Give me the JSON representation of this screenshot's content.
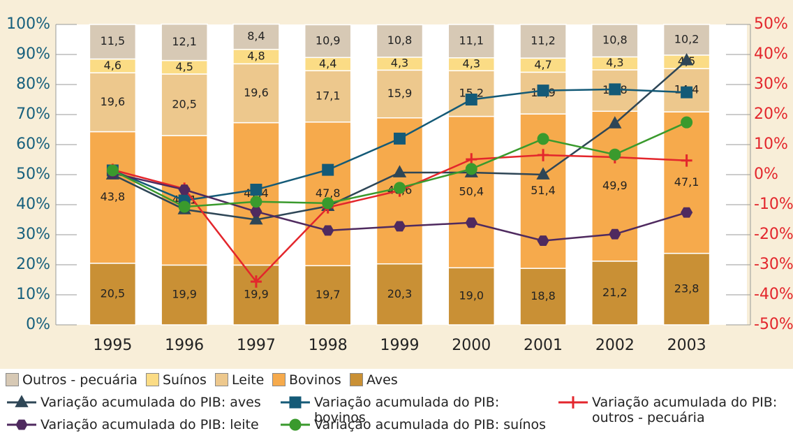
{
  "chart_data": {
    "type": "bar",
    "stacked": true,
    "categories": [
      "1995",
      "1996",
      "1997",
      "1998",
      "1999",
      "2000",
      "2001",
      "2002",
      "2003"
    ],
    "ylim": [
      0,
      100
    ],
    "yticks": [
      {
        "value": 0,
        "label": "0%"
      },
      {
        "value": 10,
        "label": "10%"
      },
      {
        "value": 20,
        "label": "20%"
      },
      {
        "value": 30,
        "label": "30%"
      },
      {
        "value": 40,
        "label": "40%"
      },
      {
        "value": 50,
        "label": "50%"
      },
      {
        "value": 60,
        "label": "60%"
      },
      {
        "value": 70,
        "label": "70%"
      },
      {
        "value": 80,
        "label": "80%"
      },
      {
        "value": 90,
        "label": "90%"
      },
      {
        "value": 100,
        "label": "100%"
      }
    ],
    "y2lim": [
      -50,
      50
    ],
    "y2ticks": [
      {
        "value": -50,
        "label": "-50%"
      },
      {
        "value": -40,
        "label": "-40%"
      },
      {
        "value": -30,
        "label": "-30%"
      },
      {
        "value": -20,
        "label": "-20%"
      },
      {
        "value": -10,
        "label": "-10%"
      },
      {
        "value": 0,
        "label": "0%"
      },
      {
        "value": 10,
        "label": "10%"
      },
      {
        "value": 20,
        "label": "20%"
      },
      {
        "value": 30,
        "label": "30%"
      },
      {
        "value": 40,
        "label": "40%"
      },
      {
        "value": 50,
        "label": "50%"
      }
    ],
    "series": [
      {
        "name": "Outros - pecuária",
        "type": "bar",
        "color": "#d7c9b5",
        "values": [
          11.5,
          12.1,
          8.4,
          10.9,
          10.8,
          11.1,
          11.2,
          10.8,
          10.2
        ],
        "value_labels": [
          "11,5",
          "12,1",
          "8,4",
          "10,9",
          "10,8",
          "11,1",
          "11,2",
          "10,8",
          "10,2"
        ]
      },
      {
        "name": "Suínos",
        "type": "bar",
        "color": "#fbdc85",
        "values": [
          4.6,
          4.5,
          4.8,
          4.4,
          4.3,
          4.3,
          4.7,
          4.3,
          4.5
        ],
        "value_labels": [
          "4,6",
          "4,5",
          "4,8",
          "4,4",
          "4,3",
          "4,3",
          "4,7",
          "4,3",
          "4,5"
        ]
      },
      {
        "name": "Leite",
        "type": "bar",
        "color": "#edc88d",
        "values": [
          19.6,
          20.5,
          19.6,
          17.1,
          15.9,
          15.2,
          13.9,
          13.8,
          14.4
        ],
        "value_labels": [
          "19,6",
          "20,5",
          "19,6",
          "17,1",
          "15,9",
          "15,2",
          "13,9",
          "13,8",
          "14,4"
        ]
      },
      {
        "name": "Bovinos",
        "type": "bar",
        "color": "#f6aa4c",
        "values": [
          43.8,
          43.1,
          47.4,
          47.8,
          48.6,
          50.4,
          51.4,
          49.9,
          47.1
        ],
        "value_labels": [
          "43,8",
          "43,1",
          "47,4",
          "47,8",
          "48,6",
          "50,4",
          "51,4",
          "49,9",
          "47,1"
        ]
      },
      {
        "name": "Aves",
        "type": "bar",
        "color": "#c99035",
        "values": [
          20.5,
          19.9,
          19.9,
          19.7,
          20.3,
          19.0,
          18.8,
          21.2,
          23.8
        ],
        "value_labels": [
          "20,5",
          "19,9",
          "19,9",
          "19,7",
          "20,3",
          "19,0",
          "18,8",
          "21,2",
          "23,8"
        ]
      },
      {
        "name": "Variação acumulada do PIB: aves",
        "type": "line",
        "axis": "y2",
        "marker": "triangle",
        "color": "#2e4656",
        "values": [
          0,
          -11.6,
          -15,
          -10.5,
          0.7,
          0.7,
          0,
          17,
          38
        ]
      },
      {
        "name": "Variação acumulada do PIB: bovinos",
        "type": "line",
        "axis": "y2",
        "marker": "square",
        "color": "#145a77",
        "values": [
          1.4,
          -8.6,
          -5,
          1.6,
          12,
          25,
          28,
          28.4,
          27.4
        ]
      },
      {
        "name": "Variação acumulada do PIB: outros - pecuária",
        "type": "line",
        "axis": "y2",
        "marker": "plus",
        "color": "#e3262c",
        "values": [
          1.6,
          -4.7,
          -35.6,
          -10.9,
          -5.3,
          5.1,
          6.5,
          5.8,
          4.7
        ]
      },
      {
        "name": "Variação acumulada do PIB: leite",
        "type": "line",
        "axis": "y2",
        "marker": "hexagon",
        "color": "#4f2a5f",
        "values": [
          0.5,
          -5,
          -12.3,
          -18.6,
          -17.2,
          -16,
          -22,
          -19.8,
          -12.6
        ]
      },
      {
        "name": "Variação acumulada do PIB: suínos",
        "type": "line",
        "axis": "y2",
        "marker": "circle",
        "color": "#3a9a2d",
        "values": [
          1.4,
          -10.7,
          -9,
          -9.5,
          -4.4,
          1.9,
          11.9,
          6.7,
          17.4
        ]
      }
    ]
  }
}
